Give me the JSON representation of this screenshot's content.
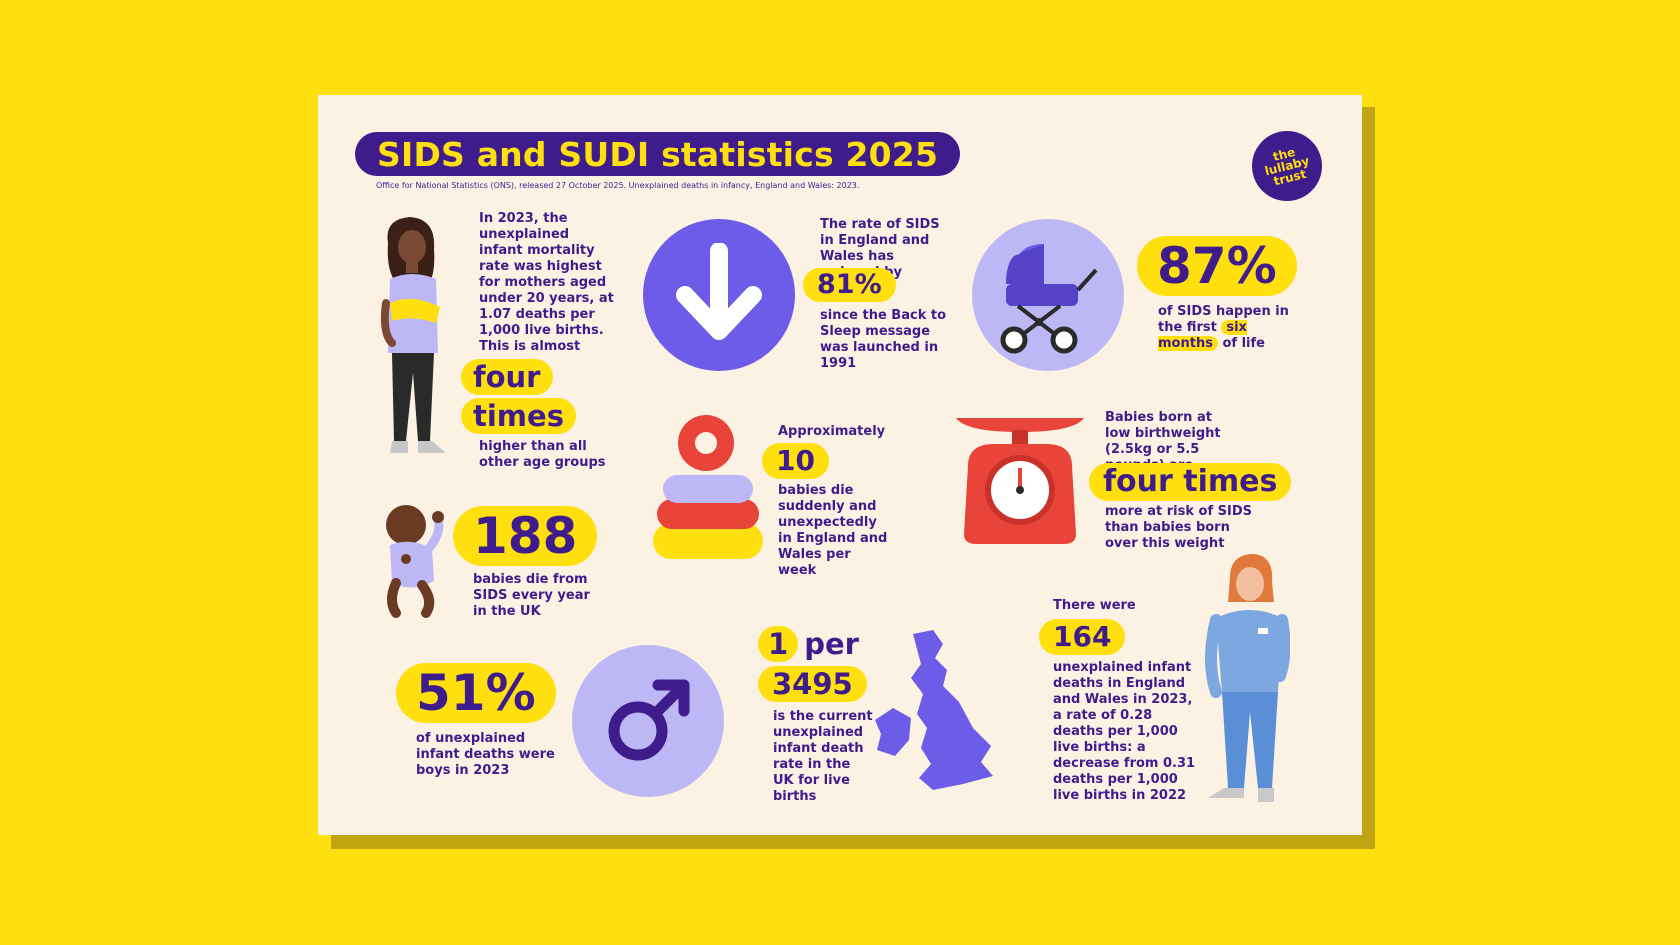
{
  "header": {
    "title": "SIDS and SUDI statistics 2025",
    "source": "Office for National Statistics (ONS), released 27 October 2025. Unexplained deaths in infancy, England and Wales: 2023.",
    "logo_lines": [
      "the",
      "lullaby",
      "trust"
    ]
  },
  "stat_mothers": {
    "text": "In 2023, the unexplained infant mortality rate was highest for mothers aged under 20 years, at 1.07 deaths per 1,000 live births. This is almost",
    "highlight_1": "four",
    "highlight_2": "times",
    "after": "higher than all other age groups"
  },
  "stat_rate": {
    "before": "The rate of SIDS in England and Wales has reduced by",
    "value": "81%",
    "after": "since the Back to Sleep message was launched in 1991"
  },
  "stat_months": {
    "value": "87%",
    "before": "of SIDS happen in the first",
    "highlight": "six months",
    "after": "of life"
  },
  "stat_weekly": {
    "before": "Approximately",
    "value": "10",
    "after": "babies die suddenly and unexpectedly in England and Wales per week"
  },
  "stat_birthweight": {
    "before": "Babies born at low birthweight (2.5kg or 5.5 pounds) are",
    "value": "four times",
    "after": "more at risk of SIDS than babies born over this weight"
  },
  "stat_yearly": {
    "value": "188",
    "after": "babies die from SIDS every year in the UK"
  },
  "stat_boys": {
    "value": "51%",
    "after": "of unexplained infant deaths were boys in 2023"
  },
  "stat_uk_rate": {
    "value_1": "1",
    "word": "per",
    "value_2": "3495",
    "after": "is the current unexplained infant death rate in the UK for live births"
  },
  "stat_164": {
    "before": "There were",
    "value": "164",
    "after": "unexplained infant deaths in England and Wales in 2023, a rate of 0.28 deaths per 1,000 live births: a decrease from 0.31 deaths per 1,000 live births in 2022"
  },
  "colors": {
    "background": "#FFDF0E",
    "card": "#FCF2E4",
    "navy": "#3F1C8C",
    "purple": "#6C5CE7",
    "lavender": "#BDB8F5",
    "red": "#E8443A",
    "yellow": "#FFDF0E"
  },
  "icons": [
    "down-arrow-icon",
    "pram-icon",
    "stacking-rings-icon",
    "weighing-scale-icon",
    "male-symbol-icon",
    "uk-map-icon"
  ]
}
